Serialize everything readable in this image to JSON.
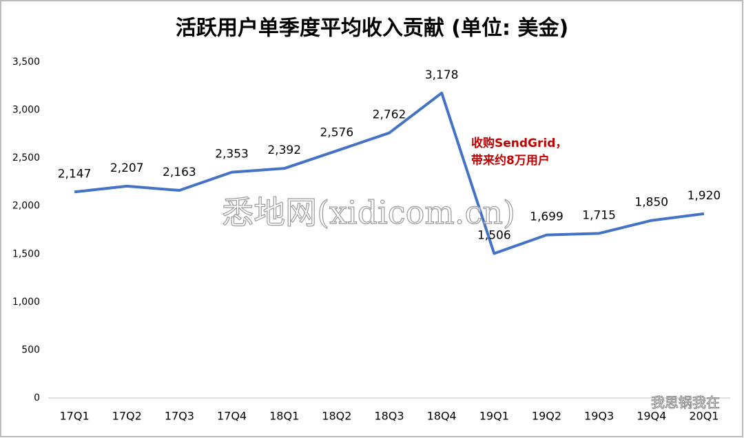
{
  "chart_data": {
    "type": "line",
    "title": "活跃用户单季度平均收入贡献 (单位: 美金)",
    "categories": [
      "17Q1",
      "17Q2",
      "17Q3",
      "17Q4",
      "18Q1",
      "18Q2",
      "18Q3",
      "18Q4",
      "19Q1",
      "19Q2",
      "19Q3",
      "19Q4",
      "20Q1"
    ],
    "series": [
      {
        "name": "活跃用户单季度平均收入贡献",
        "color": "#4472c4",
        "values": [
          2147,
          2207,
          2163,
          2353,
          2392,
          2576,
          2762,
          3178,
          1506,
          1699,
          1715,
          1850,
          1920
        ]
      }
    ],
    "value_labels": [
      "2,147",
      "2,207",
      "2,163",
      "2,353",
      "2,392",
      "2,576",
      "2,762",
      "3,178",
      "1,506",
      "1,699",
      "1,715",
      "1,850",
      "1,920"
    ],
    "ylim": [
      0,
      3500
    ],
    "yticks": [
      0,
      500,
      {
        "value": 1000,
        "label": "1,000"
      },
      {
        "value": 1500,
        "label": "1,500"
      },
      {
        "value": 2000,
        "label": "2,000"
      },
      {
        "value": 2500,
        "label": "2,500"
      },
      {
        "value": 3000,
        "label": "3,000"
      },
      {
        "value": 3500,
        "label": "3,500"
      }
    ],
    "grid": false,
    "annotation": [
      "收购SendGrid，",
      "带来约8万用户"
    ],
    "annotation_color": "#c00000",
    "watermarks": [
      "悉地网(xidicom.cn)",
      "我思锅我在"
    ]
  }
}
